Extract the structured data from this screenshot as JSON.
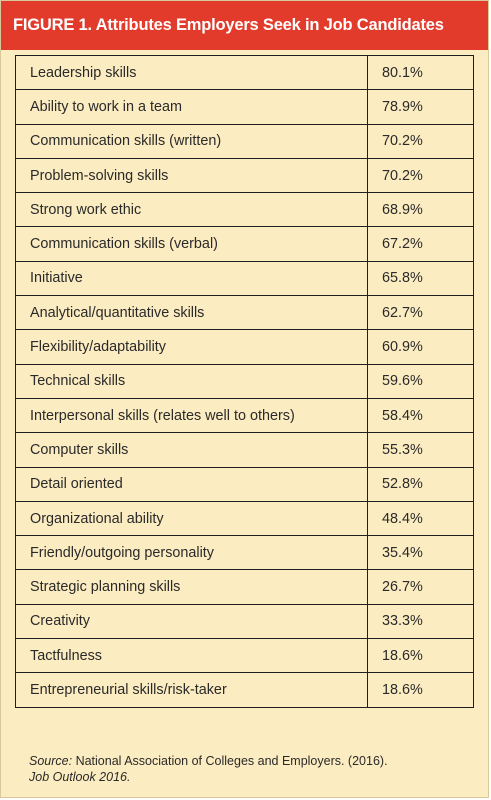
{
  "header": {
    "title": "FIGURE 1. Attributes Employers Seek in Job Candidates"
  },
  "colors": {
    "header_bg": "#e23b2c",
    "panel_bg": "#fcecc1",
    "grid_line": "#1f1f1f",
    "text": "#2a2a2a"
  },
  "chart_data": {
    "type": "table",
    "title": "FIGURE 1. Attributes Employers Seek in Job Candidates",
    "rows": [
      {
        "attribute": "Leadership skills",
        "percent": "80.1%"
      },
      {
        "attribute": "Ability to work in a team",
        "percent": "78.9%"
      },
      {
        "attribute": "Communication skills (written)",
        "percent": "70.2%"
      },
      {
        "attribute": "Problem-solving skills",
        "percent": "70.2%"
      },
      {
        "attribute": "Strong work ethic",
        "percent": "68.9%"
      },
      {
        "attribute": "Communication skills (verbal)",
        "percent": "67.2%"
      },
      {
        "attribute": "Initiative",
        "percent": "65.8%"
      },
      {
        "attribute": "Analytical/quantitative skills",
        "percent": "62.7%"
      },
      {
        "attribute": "Flexibility/adaptability",
        "percent": "60.9%"
      },
      {
        "attribute": "Technical skills",
        "percent": "59.6%"
      },
      {
        "attribute": "Interpersonal skills (relates well to others)",
        "percent": "58.4%"
      },
      {
        "attribute": "Computer skills",
        "percent": "55.3%"
      },
      {
        "attribute": "Detail oriented",
        "percent": "52.8%"
      },
      {
        "attribute": "Organizational ability",
        "percent": "48.4%"
      },
      {
        "attribute": "Friendly/outgoing personality",
        "percent": "35.4%"
      },
      {
        "attribute": "Strategic planning skills",
        "percent": "26.7%"
      },
      {
        "attribute": "Creativity",
        "percent": "33.3%"
      },
      {
        "attribute": "Tactfulness",
        "percent": "18.6%"
      },
      {
        "attribute": "Entrepreneurial skills/risk-taker",
        "percent": "18.6%"
      }
    ]
  },
  "source": {
    "label": "Source:",
    "text": " National Association of Colleges and Employers. (2016).",
    "publication": "Job Outlook 2016."
  }
}
